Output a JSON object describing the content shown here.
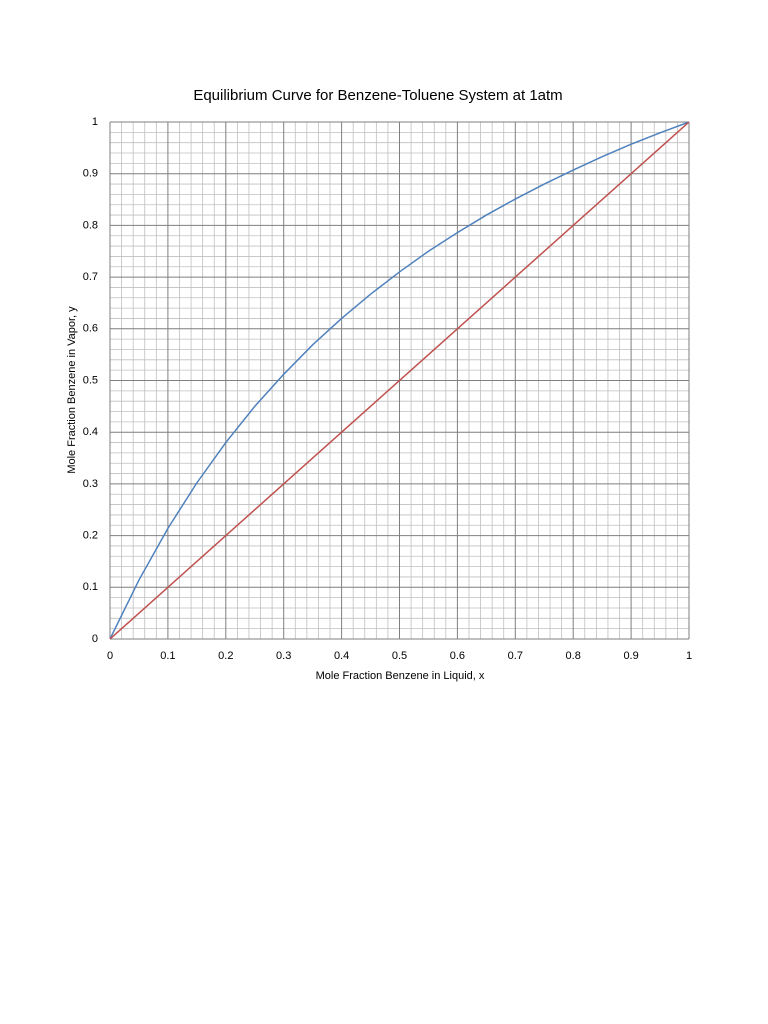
{
  "chart_data": {
    "type": "line",
    "title": "Equilibrium Curve for Benzene-Toluene System at 1atm",
    "x_label": "Mole  Fraction Benzene in Liquid, x",
    "y_label": "Mole Fraction Benzene in Vapor, y",
    "xlim": [
      0,
      1
    ],
    "ylim": [
      0,
      1
    ],
    "xticks": [
      0,
      0.1,
      0.2,
      0.3,
      0.4,
      0.5,
      0.6,
      0.7,
      0.8,
      0.9,
      1
    ],
    "yticks": [
      0,
      0.1,
      0.2,
      0.3,
      0.4,
      0.5,
      0.6,
      0.7,
      0.8,
      0.9,
      1
    ],
    "grid": true,
    "minor_grid": 5,
    "series": [
      {
        "color": "#4f81bd",
        "x": [
          0,
          0.05,
          0.1,
          0.15,
          0.2,
          0.25,
          0.3,
          0.35,
          0.4,
          0.45,
          0.5,
          0.55,
          0.6,
          0.65,
          0.7,
          0.75,
          0.8,
          0.85,
          0.9,
          0.95,
          1
        ],
        "values": [
          0,
          0.114,
          0.214,
          0.302,
          0.38,
          0.45,
          0.512,
          0.569,
          0.62,
          0.667,
          0.71,
          0.75,
          0.786,
          0.82,
          0.851,
          0.88,
          0.907,
          0.933,
          0.957,
          0.979,
          1
        ]
      },
      {
        "color": "#c0504d",
        "x": [
          0,
          1
        ],
        "values": [
          0,
          1
        ]
      }
    ]
  }
}
